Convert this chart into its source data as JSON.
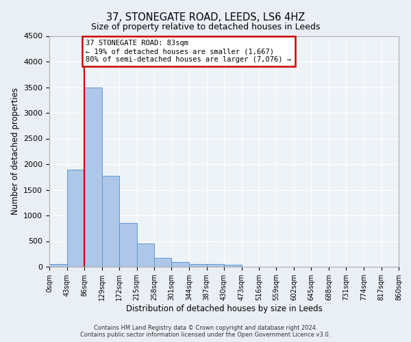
{
  "title": "37, STONEGATE ROAD, LEEDS, LS6 4HZ",
  "subtitle": "Size of property relative to detached houses in Leeds",
  "xlabel": "Distribution of detached houses by size in Leeds",
  "ylabel": "Number of detached properties",
  "bin_edges": [
    0,
    43,
    86,
    129,
    172,
    215,
    258,
    301,
    344,
    387,
    430,
    473,
    516,
    559,
    602,
    645,
    688,
    731,
    774,
    817,
    860
  ],
  "bin_labels": [
    "0sqm",
    "43sqm",
    "86sqm",
    "129sqm",
    "172sqm",
    "215sqm",
    "258sqm",
    "301sqm",
    "344sqm",
    "387sqm",
    "430sqm",
    "473sqm",
    "516sqm",
    "559sqm",
    "602sqm",
    "645sqm",
    "688sqm",
    "731sqm",
    "774sqm",
    "817sqm",
    "860sqm"
  ],
  "counts": [
    50,
    1900,
    3500,
    1780,
    850,
    460,
    175,
    100,
    55,
    50,
    40,
    0,
    0,
    0,
    0,
    0,
    0,
    0,
    0,
    0
  ],
  "bar_color": "#aec6e8",
  "bar_edge_color": "#5b9bd5",
  "vline_x": 86,
  "annotation_title": "37 STONEGATE ROAD: 83sqm",
  "annotation_line1": "← 19% of detached houses are smaller (1,667)",
  "annotation_line2": "80% of semi-detached houses are larger (7,076) →",
  "annotation_box_color": "#ffffff",
  "annotation_box_edge": "#cc0000",
  "vline_color": "#cc0000",
  "ylim": [
    0,
    4500
  ],
  "yticks": [
    0,
    500,
    1000,
    1500,
    2000,
    2500,
    3000,
    3500,
    4000,
    4500
  ],
  "footer_line1": "Contains HM Land Registry data © Crown copyright and database right 2024.",
  "footer_line2": "Contains public sector information licensed under the Open Government Licence v3.0.",
  "bg_color": "#eaeff5",
  "plot_bg_color": "#eef3f8"
}
